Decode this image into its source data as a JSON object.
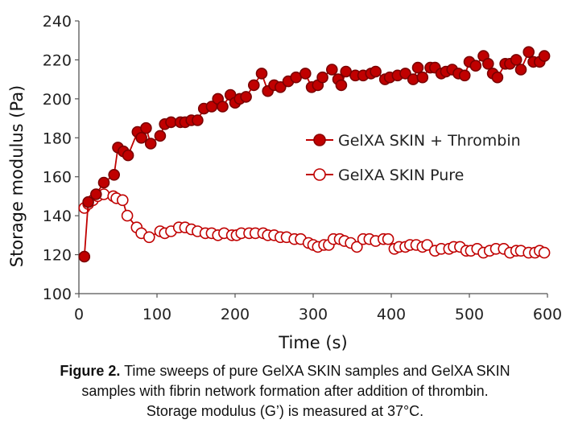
{
  "caption": {
    "label": "Figure 2.",
    "text_lines": [
      "Time sweeps of pure GelXA SKIN samples and GelXA SKIN",
      "samples with fibrin network formation after addition of thrombin.",
      "Storage modulus (G’) is measured at 37°C."
    ]
  },
  "chart_data": {
    "type": "line",
    "xlabel": "Time (s)",
    "ylabel": "Storage modulus (Pa)",
    "xlim": [
      0,
      600
    ],
    "ylim": [
      100,
      240
    ],
    "xticks": [
      0,
      100,
      200,
      300,
      400,
      500,
      600
    ],
    "yticks": [
      100,
      120,
      140,
      160,
      180,
      200,
      220,
      240
    ],
    "grid": false,
    "legend_position": "center-right",
    "series": [
      {
        "name": "GelXA SKIN + Thrombin",
        "color": "#c00000",
        "marker_fill": "#c00000",
        "x": [
          7,
          12,
          22,
          32,
          45,
          50,
          57,
          63,
          75,
          80,
          86,
          92,
          104,
          110,
          118,
          130,
          136,
          144,
          152,
          160,
          170,
          178,
          184,
          194,
          200,
          206,
          214,
          224,
          234,
          242,
          250,
          258,
          268,
          278,
          290,
          298,
          306,
          312,
          324,
          332,
          336,
          342,
          354,
          364,
          374,
          380,
          392,
          398,
          408,
          418,
          428,
          434,
          440,
          450,
          456,
          464,
          470,
          478,
          486,
          494,
          500,
          508,
          518,
          524,
          530,
          536,
          546,
          552,
          560,
          566,
          576,
          582,
          590,
          596
        ],
        "values": [
          119,
          147,
          151,
          157,
          161,
          175,
          173,
          171,
          183,
          180,
          185,
          177,
          181,
          187,
          188,
          188,
          188,
          189,
          189,
          195,
          196,
          200,
          196,
          202,
          198,
          200,
          201,
          207,
          213,
          204,
          207,
          206,
          209,
          211,
          213,
          206,
          207,
          211,
          215,
          210,
          207,
          214,
          212,
          212,
          213,
          214,
          210,
          211,
          212,
          213,
          210,
          216,
          211,
          216,
          216,
          213,
          214,
          215,
          213,
          212,
          219,
          217,
          222,
          218,
          213,
          211,
          218,
          218,
          220,
          215,
          224,
          219,
          219,
          222
        ]
      },
      {
        "name": "GelXA SKIN Pure",
        "color": "#c00000",
        "marker_fill": "#ffffff",
        "x": [
          7,
          12,
          18,
          24,
          32,
          44,
          48,
          56,
          62,
          74,
          80,
          90,
          104,
          110,
          118,
          128,
          136,
          144,
          152,
          162,
          170,
          178,
          186,
          196,
          202,
          208,
          218,
          226,
          236,
          242,
          250,
          258,
          266,
          276,
          284,
          294,
          300,
          306,
          314,
          320,
          326,
          334,
          340,
          348,
          356,
          364,
          372,
          380,
          390,
          396,
          404,
          410,
          418,
          424,
          432,
          440,
          446,
          456,
          464,
          474,
          480,
          488,
          496,
          502,
          510,
          518,
          526,
          534,
          544,
          552,
          560,
          566,
          576,
          584,
          590,
          596
        ],
        "values": [
          144,
          146,
          148,
          150,
          151,
          150,
          149,
          148,
          140,
          134,
          131,
          129,
          132,
          131,
          132,
          134,
          134,
          133,
          132,
          131,
          131,
          130,
          131,
          130,
          130,
          131,
          131,
          131,
          131,
          130,
          130,
          129,
          129,
          128,
          128,
          126,
          125,
          124,
          125,
          125,
          128,
          128,
          127,
          126,
          124,
          128,
          128,
          127,
          128,
          128,
          123,
          124,
          124,
          125,
          125,
          124,
          125,
          122,
          123,
          123,
          124,
          124,
          122,
          122,
          123,
          121,
          122,
          123,
          123,
          121,
          122,
          122,
          121,
          121,
          122,
          121
        ]
      }
    ]
  }
}
